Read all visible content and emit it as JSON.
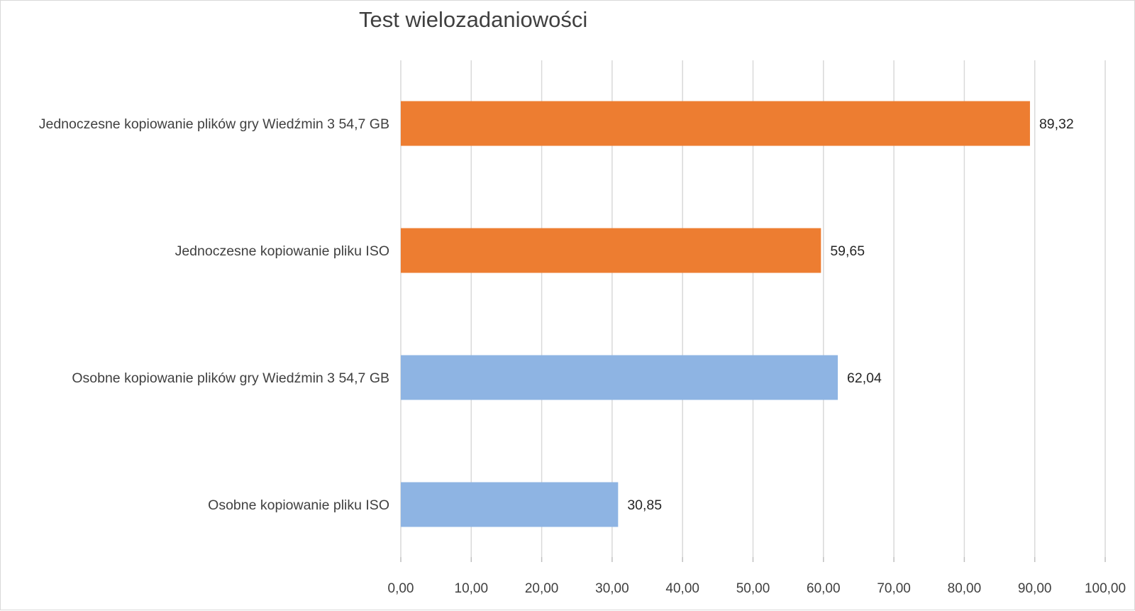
{
  "chart_data": {
    "type": "bar",
    "orientation": "horizontal",
    "title": "Test wielozadaniowości",
    "xlabel": "",
    "ylabel": "",
    "xlim": [
      0,
      100
    ],
    "x_tick_step": 10,
    "x_tick_labels": [
      "0,00",
      "10,00",
      "20,00",
      "30,00",
      "40,00",
      "50,00",
      "60,00",
      "70,00",
      "80,00",
      "90,00",
      "100,00"
    ],
    "grid": true,
    "legend": "none",
    "categories": [
      "Jednoczesne kopiowanie plików gry Wiedźmin 3 54,7 GB",
      "Jednoczesne kopiowanie pliku ISO",
      "Osobne kopiowanie plików gry Wiedźmin 3 54,7 GB",
      "Osobne kopiowanie pliku ISO"
    ],
    "values": [
      89.32,
      59.65,
      62.04,
      30.85
    ],
    "data_labels": [
      "89,32",
      "59,65",
      "62,04",
      "30,85"
    ],
    "bar_colors": [
      "#ed7d31",
      "#ed7d31",
      "#8eb4e3",
      "#8eb4e3"
    ]
  }
}
